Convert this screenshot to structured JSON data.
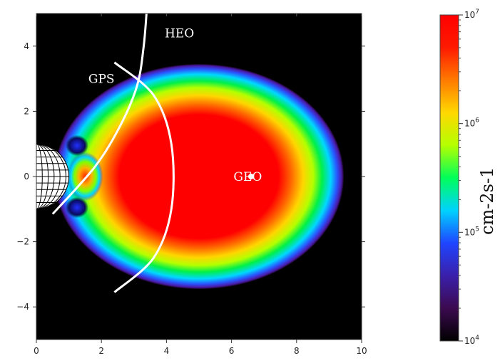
{
  "chart_data": {
    "type": "heatmap",
    "title": "",
    "xlabel": "",
    "ylabel": "",
    "xlim": [
      0,
      10
    ],
    "ylim": [
      -5,
      5
    ],
    "x_ticks": [
      {
        "value": 0,
        "label": "0"
      },
      {
        "value": 2,
        "label": "2"
      },
      {
        "value": 4,
        "label": "4"
      },
      {
        "value": 6,
        "label": "6"
      },
      {
        "value": 8,
        "label": "8"
      },
      {
        "value": 10,
        "label": "10"
      }
    ],
    "y_ticks": [
      {
        "value": 4,
        "label": "4"
      },
      {
        "value": 2,
        "label": "2"
      },
      {
        "value": 0,
        "label": "0"
      },
      {
        "value": -2,
        "label": "−2"
      },
      {
        "value": -4,
        "label": "−4"
      }
    ],
    "background_color": "#000000",
    "field": {
      "center": [
        5.0,
        0.0
      ],
      "outer_radius": [
        4.45,
        3.45
      ],
      "peak_region": "red core spanning roughly x 2.5 to 7 and y -2.3 to 2.3",
      "inner_belt_peak": [
        1.5,
        0.0
      ]
    },
    "orbits": [
      {
        "name": "HEO",
        "label": "HEO",
        "label_at": [
          4.4,
          4.4
        ],
        "points": [
          [
            3.4,
            5.2
          ],
          [
            3.3,
            4.0
          ],
          [
            3.1,
            2.8
          ],
          [
            2.6,
            1.6
          ],
          [
            1.8,
            0.3
          ],
          [
            0.5,
            -1.15
          ]
        ]
      },
      {
        "name": "GPS",
        "label": "GPS",
        "label_at": [
          2.0,
          3.0
        ],
        "points": [
          [
            2.4,
            3.5
          ],
          [
            3.6,
            2.5
          ],
          [
            4.15,
            1.0
          ],
          [
            4.15,
            -1.0
          ],
          [
            3.6,
            -2.5
          ],
          [
            2.4,
            -3.55
          ]
        ]
      },
      {
        "name": "GEO",
        "label": "GEO",
        "label_at": [
          6.5,
          0.0
        ],
        "points": [
          [
            6.6,
            0.0
          ]
        ]
      }
    ],
    "earth": {
      "center": [
        0.0,
        0.0
      ],
      "radius": 1.0
    },
    "colorbar": {
      "scale": "log",
      "min": 10000,
      "max": 10000000,
      "tick_labels": [
        {
          "value": 10000000,
          "base": "10",
          "exp": "7"
        },
        {
          "value": 1000000,
          "base": "10",
          "exp": "6"
        },
        {
          "value": 100000,
          "base": "10",
          "exp": "5"
        },
        {
          "value": 10000,
          "base": "10",
          "exp": "4"
        }
      ],
      "unit_label": "cm-2s-1",
      "colors": [
        "#000000",
        "#3c0a50",
        "#3a1faa",
        "#1f45ff",
        "#00d2ff",
        "#00ff5a",
        "#b4ff00",
        "#ffd800",
        "#ff7a00",
        "#ff1a00",
        "#ff0000"
      ]
    }
  }
}
